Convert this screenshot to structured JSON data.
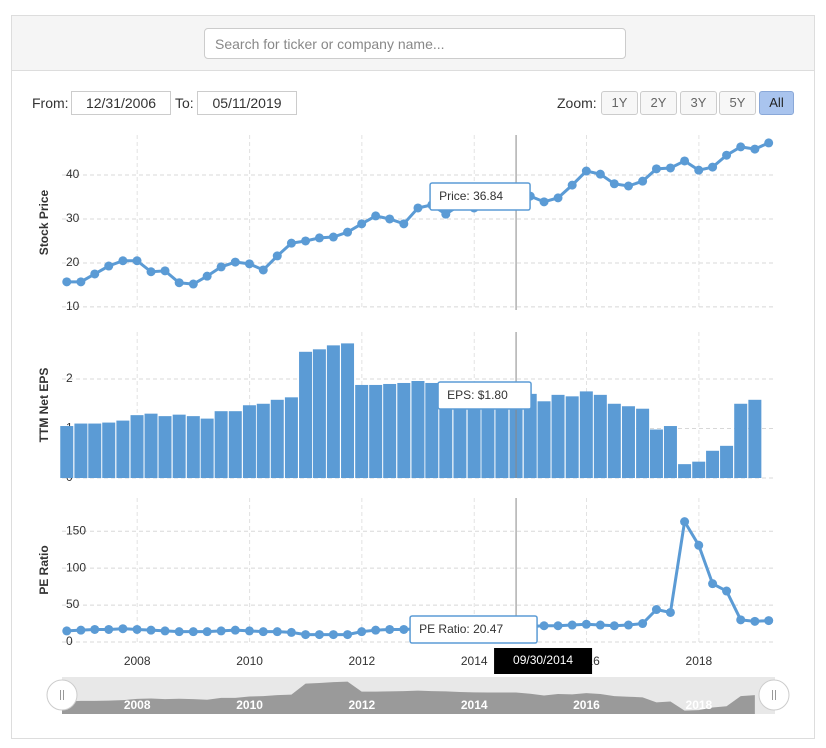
{
  "search_placeholder": "Search for ticker or company name...",
  "range": {
    "from_label": "From:",
    "from": "12/31/2006",
    "to_label": "To:",
    "to": "05/11/2019"
  },
  "zoom": {
    "label": "Zoom:",
    "buttons": [
      "1Y",
      "2Y",
      "3Y",
      "5Y",
      "All"
    ],
    "active": "All"
  },
  "crosshair_label": "09/30/2014",
  "chart_data": [
    {
      "type": "line",
      "y_label": "Stock Price",
      "color": "#5b9bd5",
      "markers": true,
      "grid": true,
      "tooltip": "Price: 36.84",
      "x": [
        "2006-09-30",
        "2006-12-31",
        "2007-03-31",
        "2007-06-30",
        "2007-09-30",
        "2007-12-31",
        "2008-03-31",
        "2008-06-30",
        "2008-09-30",
        "2008-12-31",
        "2009-03-31",
        "2009-06-30",
        "2009-09-30",
        "2009-12-31",
        "2010-03-31",
        "2010-06-30",
        "2010-09-30",
        "2010-12-31",
        "2011-03-31",
        "2011-06-30",
        "2011-09-30",
        "2011-12-31",
        "2012-03-31",
        "2012-06-30",
        "2012-09-30",
        "2012-12-31",
        "2013-03-31",
        "2013-06-30",
        "2013-09-30",
        "2013-12-31",
        "2014-03-31",
        "2014-06-30",
        "2014-09-30",
        "2014-12-31",
        "2015-03-31",
        "2015-06-30",
        "2015-09-30",
        "2015-12-31",
        "2016-03-31",
        "2016-06-30",
        "2016-09-30",
        "2016-12-31",
        "2017-03-31",
        "2017-06-30",
        "2017-09-30",
        "2017-12-31",
        "2018-03-31",
        "2018-06-30",
        "2018-09-30",
        "2018-12-31",
        "2019-03-31"
      ],
      "xlim": [
        "2006-08-30",
        "2019-05-11"
      ],
      "xticks": [
        {
          "value": "2008-01-01",
          "label": "2008"
        },
        {
          "value": "2010-01-01",
          "label": "2010"
        },
        {
          "value": "2012-01-01",
          "label": "2012"
        },
        {
          "value": "2014-01-01",
          "label": "2014"
        },
        {
          "value": "2016-01-01",
          "label": "2016"
        },
        {
          "value": "2018-01-01",
          "label": "2018"
        }
      ],
      "values": [
        15.7,
        15.7,
        17.5,
        19.3,
        20.5,
        20.5,
        18.0,
        18.2,
        15.5,
        15.2,
        17.0,
        19.1,
        20.2,
        19.8,
        18.4,
        21.6,
        24.5,
        25.0,
        25.7,
        25.9,
        27.0,
        28.9,
        30.7,
        30.0,
        28.9,
        32.5,
        33.2,
        31.1,
        33.2,
        32.5,
        33.9,
        35.0,
        36.84,
        35.2,
        33.9,
        34.8,
        37.7,
        40.9,
        40.2,
        38.0,
        37.5,
        38.6,
        41.4,
        41.6,
        43.2,
        41.1,
        41.8,
        44.5,
        46.4,
        45.9,
        47.3
      ],
      "ylim": [
        9.3,
        49.1
      ],
      "yticks": [
        10,
        20,
        30,
        40
      ]
    },
    {
      "type": "bar",
      "y_label": "TTM Net EPS",
      "color": "#5b9bd5",
      "grid": true,
      "tooltip": "EPS: $1.80",
      "values": [
        1.05,
        1.1,
        1.1,
        1.12,
        1.16,
        1.27,
        1.3,
        1.25,
        1.28,
        1.25,
        1.2,
        1.35,
        1.35,
        1.47,
        1.5,
        1.58,
        1.63,
        2.55,
        2.6,
        2.68,
        2.72,
        1.88,
        1.88,
        1.9,
        1.92,
        1.96,
        1.92,
        1.9,
        1.85,
        1.82,
        1.8,
        1.8,
        1.8,
        1.7,
        1.55,
        1.68,
        1.65,
        1.75,
        1.68,
        1.5,
        1.45,
        1.4,
        0.98,
        1.05,
        0.28,
        0.33,
        0.55,
        0.65,
        1.5,
        1.58,
        null
      ],
      "ylim": [
        0,
        2.95
      ],
      "yticks": [
        0,
        1,
        2
      ]
    },
    {
      "type": "line",
      "y_label": "PE Ratio",
      "color": "#5b9bd5",
      "markers": true,
      "grid": true,
      "tooltip": "PE Ratio: 20.47",
      "values": [
        15,
        16,
        17,
        17,
        18,
        17,
        16,
        15,
        14,
        14,
        14,
        15,
        16,
        15,
        14,
        14,
        13,
        10,
        10,
        10,
        10,
        14,
        16,
        17,
        17,
        18,
        19,
        19,
        20,
        20,
        20,
        20,
        20.47,
        21,
        22,
        22,
        23,
        24,
        23,
        22,
        23,
        25,
        44,
        40,
        163,
        131,
        79,
        69,
        30,
        28,
        29
      ],
      "ylim": [
        0,
        195
      ],
      "yticks": [
        0,
        50,
        100,
        150
      ]
    }
  ]
}
